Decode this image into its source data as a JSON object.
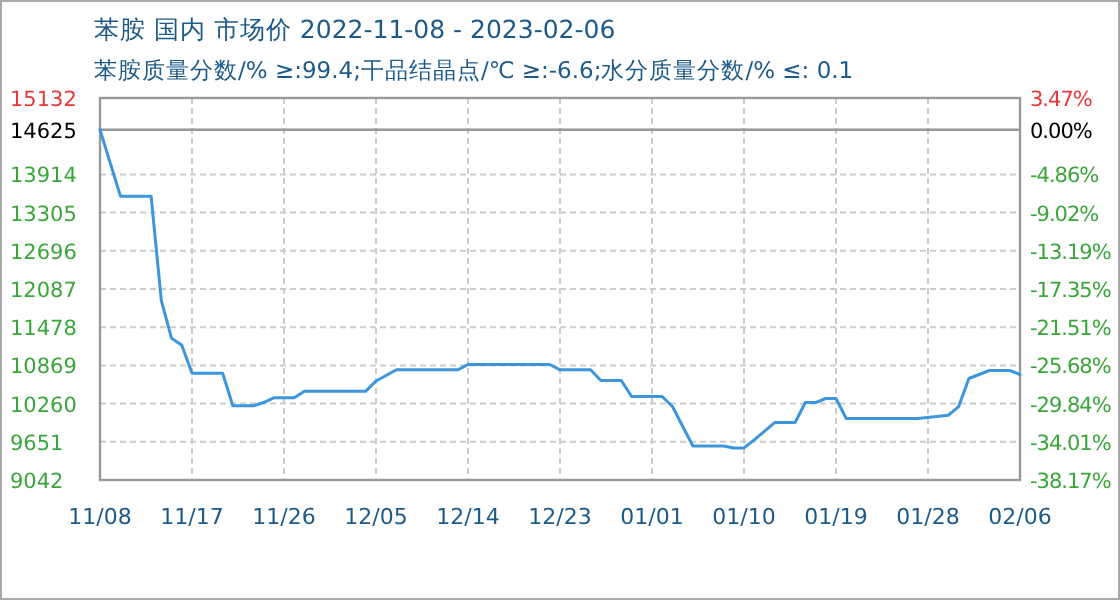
{
  "chart_data": {
    "type": "line",
    "title": "苯胺 国内 市场价 2022-11-08 - 2023-02-06",
    "subtitle": "苯胺质量分数/% ≥:99.4;干品结晶点/℃  ≥:-6.6;水分质量分数/%  ≤: 0.1",
    "x": [
      "2022-11-08",
      "2022-11-10",
      "2022-11-13",
      "2022-11-14",
      "2022-11-15",
      "2022-11-16",
      "2022-11-17",
      "2022-11-20",
      "2022-11-21",
      "2022-11-23",
      "2022-11-24",
      "2022-11-25",
      "2022-11-27",
      "2022-11-28",
      "2022-12-04",
      "2022-12-05",
      "2022-12-07",
      "2022-12-13",
      "2022-12-14",
      "2022-12-22",
      "2022-12-23",
      "2022-12-26",
      "2022-12-27",
      "2022-12-29",
      "2022-12-30",
      "2023-01-02",
      "2023-01-03",
      "2023-01-05",
      "2023-01-08",
      "2023-01-09",
      "2023-01-10",
      "2023-01-11",
      "2023-01-13",
      "2023-01-15",
      "2023-01-16",
      "2023-01-17",
      "2023-01-18",
      "2023-01-19",
      "2023-01-20",
      "2023-01-27",
      "2023-01-30",
      "2023-01-31",
      "2023-02-01",
      "2023-02-03",
      "2023-02-05",
      "2023-02-06"
    ],
    "series": [
      {
        "color": "#3d95dc",
        "values": [
          14625,
          13567,
          13567,
          11900,
          11300,
          11190,
          10745,
          10745,
          10224,
          10224,
          10277,
          10352,
          10352,
          10458,
          10458,
          10620,
          10799,
          10799,
          10884,
          10884,
          10799,
          10799,
          10628,
          10628,
          10373,
          10373,
          10213,
          9585,
          9585,
          9553,
          9553,
          9681,
          9958,
          9958,
          10277,
          10277,
          10341,
          10341,
          10022,
          10022,
          10075,
          10213,
          10660,
          10788,
          10788,
          10724
        ]
      }
    ],
    "xlim": [
      "2022-11-08",
      "2023-02-06"
    ],
    "xticks": [
      {
        "value": "2022-11-08",
        "label": "11/08"
      },
      {
        "value": "2022-11-17",
        "label": "11/17"
      },
      {
        "value": "2022-11-26",
        "label": "11/26"
      },
      {
        "value": "2022-12-05",
        "label": "12/05"
      },
      {
        "value": "2022-12-14",
        "label": "12/14"
      },
      {
        "value": "2022-12-23",
        "label": "12/23"
      },
      {
        "value": "2023-01-01",
        "label": "01/01"
      },
      {
        "value": "2023-01-10",
        "label": "01/10"
      },
      {
        "value": "2023-01-19",
        "label": "01/19"
      },
      {
        "value": "2023-01-28",
        "label": "01/28"
      },
      {
        "value": "2023-02-06",
        "label": "02/06"
      }
    ],
    "ylim": [
      9042,
      15132
    ],
    "yticks": [
      9042,
      9651,
      10260,
      10869,
      11478,
      12087,
      12696,
      13305,
      13914,
      14625,
      15132
    ],
    "y2lim": [
      -38.17,
      3.47
    ],
    "y2ticks": [
      {
        "value": -38.17,
        "label": "-38.17%"
      },
      {
        "value": -34.01,
        "label": "-34.01%"
      },
      {
        "value": -29.84,
        "label": "-29.84%"
      },
      {
        "value": -25.68,
        "label": "-25.68%"
      },
      {
        "value": -21.51,
        "label": "-21.51%"
      },
      {
        "value": -17.35,
        "label": "-17.35%"
      },
      {
        "value": -13.19,
        "label": "-13.19%"
      },
      {
        "value": -9.02,
        "label": "-9.02%"
      },
      {
        "value": -4.86,
        "label": "-4.86%"
      },
      {
        "value": 0,
        "label": "0.00%"
      },
      {
        "value": 3.47,
        "label": "3.47%"
      }
    ],
    "ref_lines": [
      {
        "axis": "y",
        "value": 14625,
        "color": "#999999"
      }
    ],
    "grid": true,
    "line_style": "solid"
  }
}
